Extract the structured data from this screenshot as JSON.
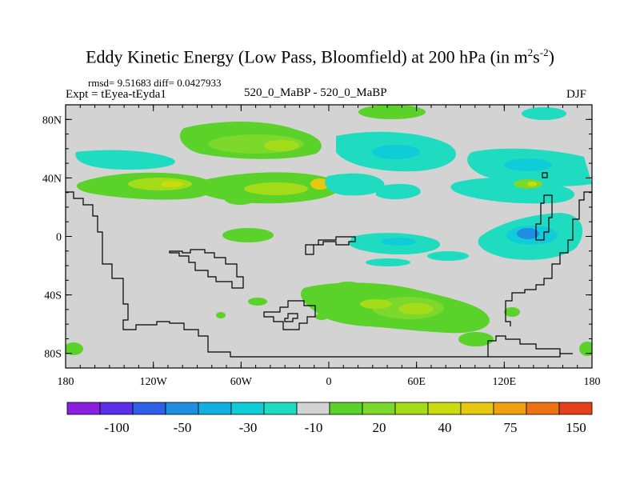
{
  "title": {
    "main": "Eddy Kinetic Energy (Low Pass, Bloomfield) at 200 hPa (in m",
    "sup1": "2",
    "mid": "s",
    "sup2": "-2",
    "end": ")"
  },
  "stats": "rmsd= 9.51683 diff= 0.0427933",
  "expt": "Expt = tEyea-tEyda1",
  "center_label": "520_0_MaBP - 520_0_MaBP",
  "season": "DJF",
  "map": {
    "lat_labels": [
      "80N",
      "40N",
      "0",
      "40S",
      "80S"
    ],
    "lon_labels": [
      "180",
      "120W",
      "60W",
      "0",
      "60E",
      "120E",
      "180"
    ],
    "lat_values": [
      80,
      40,
      0,
      -40,
      -80
    ],
    "lon_values": [
      -180,
      -120,
      -60,
      0,
      60,
      120,
      180
    ],
    "background_color": "#d3d3d3",
    "coast_color": "#000000"
  },
  "colorbar": {
    "colors": [
      "#8a1fe0",
      "#5a2fe8",
      "#2f5fe6",
      "#1f8de0",
      "#12b0e0",
      "#10ccd8",
      "#1fdcc0",
      "#d3d3d3",
      "#5ad22a",
      "#7cd82a",
      "#a4dc1a",
      "#c8dc10",
      "#e6c810",
      "#f0a010",
      "#ec7212",
      "#e4401a"
    ],
    "labels": [
      "-100",
      "-50",
      "-30",
      "-10",
      "20",
      "40",
      "75",
      "150"
    ]
  },
  "palette": {
    "cyan": "#1fdcc0",
    "cyan_dark": "#10ccd8",
    "blue": "#1f8de0",
    "green": "#5ad22a",
    "green_light": "#7cd82a",
    "yellow_green": "#a4dc1a",
    "yellow": "#c8dc10",
    "gold": "#e6c810"
  }
}
